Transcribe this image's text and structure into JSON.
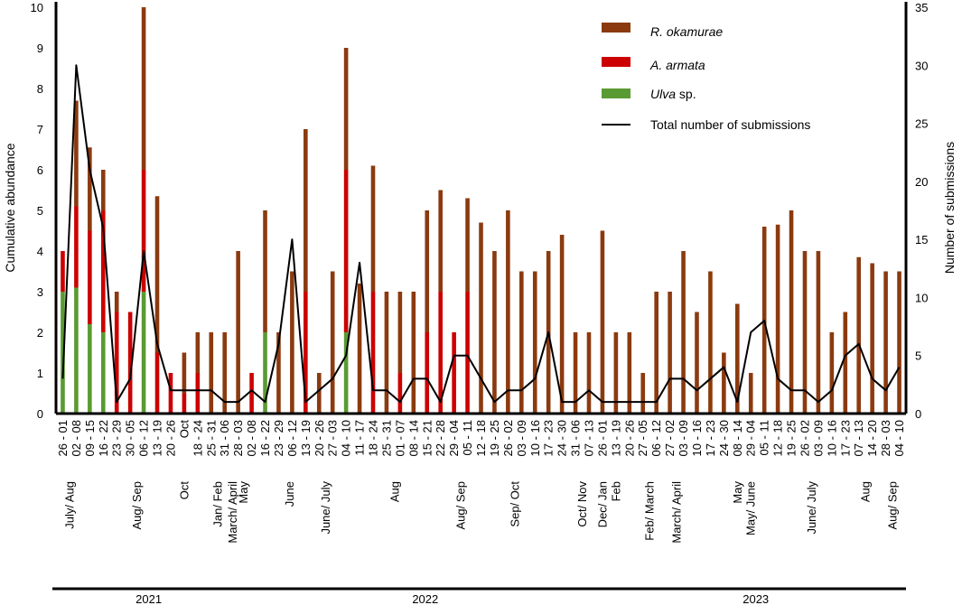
{
  "chart_data": {
    "type": "bar",
    "stacked": true,
    "ylabel": "Cumulative abundance",
    "y2label": "Number of submissions",
    "ylim": [
      0,
      10
    ],
    "y2lim": [
      0,
      35
    ],
    "y_ticks": [
      "0",
      "1",
      "2",
      "3",
      "4",
      "5",
      "6",
      "7",
      "8",
      "9",
      "10"
    ],
    "y2_ticks": [
      "0",
      "5",
      "10",
      "15",
      "20",
      "25",
      "30",
      "35"
    ],
    "colors": {
      "rokamurae": "#8b3a0f",
      "aarmata": "#cc0000",
      "ulva": "#5a9a32",
      "line": "#000000"
    },
    "legend": {
      "rokamurae": "R. okamurae",
      "aarmata": "A. armata",
      "ulva_italic": "Ulva",
      "ulva_rest": " sp.",
      "line": "Total number of submissions"
    },
    "categories": [
      "26 - 01",
      "02 - 08",
      "09 - 15",
      "16 - 22",
      "23 - 29",
      "30 - 05",
      "06 - 12",
      "13 - 19",
      "20 - 26",
      "Oct",
      "18 - 24",
      "25 - 31",
      "31 - 06",
      "28 - 03",
      "02 - 08",
      "16 - 22",
      "23 - 29",
      "06 - 12",
      "13 - 19",
      "20 - 26",
      "27 - 03",
      "04 - 10",
      "11 - 17",
      "18 - 24",
      "25 - 31",
      "01 - 07",
      "08 - 14",
      "15 - 21",
      "22 - 28",
      "29 - 04",
      "05 - 11",
      "12 - 18",
      "19 - 25",
      "26 - 02",
      "03 - 09",
      "10 - 16",
      "17 - 23",
      "24 - 30",
      "31 - 06",
      "07 - 13",
      "26 - 01",
      "13 - 19",
      "20 - 26",
      "27 - 05",
      "06 - 12",
      "27 - 02",
      "03 - 09",
      "10 - 16",
      "17 - 23",
      "24 - 30",
      "08 - 14",
      "29 - 04",
      "05 - 11",
      "12 - 18",
      "19 - 25",
      "26 - 02",
      "03 - 09",
      "10 - 16",
      "17 - 23",
      "07 - 13",
      "14 - 20",
      "28 - 03",
      "04 - 10"
    ],
    "series": [
      {
        "name": "Ulva sp.",
        "key": "ulva",
        "values": [
          3,
          3.1,
          2.2,
          2,
          0,
          0,
          3,
          0,
          0,
          0,
          0,
          0,
          0,
          0,
          0,
          2,
          0,
          0,
          0,
          0,
          0,
          2,
          0,
          0,
          0,
          0,
          0,
          0,
          0,
          0,
          0,
          0,
          0,
          0,
          0,
          0,
          0,
          0,
          0,
          0,
          0,
          0,
          0,
          0,
          0,
          0,
          0,
          0,
          0,
          0,
          0,
          0,
          0,
          0,
          0,
          0,
          0,
          0,
          0,
          0,
          0,
          0,
          0
        ]
      },
      {
        "name": "A. armata",
        "key": "aarmata",
        "values": [
          1,
          2,
          2.3,
          3,
          2.5,
          2.5,
          3,
          1.5,
          1,
          0.5,
          1,
          0,
          0,
          0,
          1,
          0,
          0,
          0,
          3,
          0,
          0,
          4,
          0,
          3,
          0,
          1,
          0,
          2,
          3,
          2,
          3,
          0,
          0,
          0,
          0,
          0,
          0,
          0,
          0,
          0,
          0,
          0,
          0,
          0,
          0,
          0,
          0,
          0,
          0,
          0,
          0,
          0,
          0,
          0,
          0,
          0,
          0,
          0,
          0,
          0,
          0,
          0,
          0
        ]
      },
      {
        "name": "R. okamurae",
        "key": "rokamurae",
        "values": [
          0,
          2.6,
          2.05,
          1,
          0.5,
          0,
          4,
          3.85,
          0,
          1,
          1,
          2,
          2,
          4,
          0,
          3,
          2,
          3.5,
          4,
          1,
          3.5,
          3,
          3.2,
          3.1,
          3,
          2,
          3,
          3,
          2.5,
          0,
          2.3,
          4.7,
          4,
          5,
          3.5,
          3.5,
          4,
          4.4,
          2,
          2,
          4.5,
          2,
          2,
          1,
          3,
          3,
          4,
          2.5,
          3.5,
          1.5,
          2.7,
          1,
          4.6,
          4.65,
          5,
          4,
          4,
          2,
          2.5,
          3.85,
          3.7,
          3.5,
          3.5
        ]
      },
      {
        "name": "Total number of submissions",
        "key": "line",
        "axis": "right",
        "values": [
          3,
          30,
          21,
          16,
          1,
          3,
          14,
          6,
          2,
          2,
          2,
          2,
          1,
          1,
          2,
          1,
          6,
          15,
          1,
          2,
          3,
          5,
          13,
          2,
          2,
          1,
          3,
          3,
          1,
          5,
          5,
          3,
          1,
          2,
          2,
          3,
          7,
          1,
          1,
          2,
          1,
          1,
          1,
          1,
          1,
          3,
          3,
          2,
          3,
          4,
          1,
          7,
          8,
          3,
          2,
          2,
          1,
          2,
          5,
          6,
          3,
          2,
          4
        ]
      }
    ],
    "month_labels": [
      {
        "text": "July/ Aug",
        "at": 0.5
      },
      {
        "text": "Aug/ Sep",
        "at": 5.5
      },
      {
        "text": "Oct",
        "at": 9
      },
      {
        "text": "Jan/ Feb",
        "at": 11.5
      },
      {
        "text": "March/ April",
        "at": 12.6
      },
      {
        "text": "May",
        "at": 13.4
      },
      {
        "text": "June",
        "at": 16.8
      },
      {
        "text": "June/ July",
        "at": 19.5
      },
      {
        "text": "Aug",
        "at": 24.6
      },
      {
        "text": "Aug/ Sep",
        "at": 29.5
      },
      {
        "text": "Sep/ Oct",
        "at": 33.5
      },
      {
        "text": "Oct/ Nov",
        "at": 38.5
      },
      {
        "text": "Dec/ Jan",
        "at": 40
      },
      {
        "text": "Feb",
        "at": 41
      },
      {
        "text": "Feb/ March",
        "at": 43.5
      },
      {
        "text": "March/ April",
        "at": 45.5
      },
      {
        "text": "May",
        "at": 50
      },
      {
        "text": "May/ June",
        "at": 51
      },
      {
        "text": "June/ July",
        "at": 55.5
      },
      {
        "text": "Aug",
        "at": 59.5
      },
      {
        "text": "Aug/ Sep",
        "at": 61.5
      }
    ],
    "years": [
      {
        "text": "2021",
        "start": 0,
        "end": 13
      },
      {
        "text": "2022",
        "start": 14,
        "end": 40
      },
      {
        "text": "2023",
        "start": 41,
        "end": 62
      }
    ]
  }
}
